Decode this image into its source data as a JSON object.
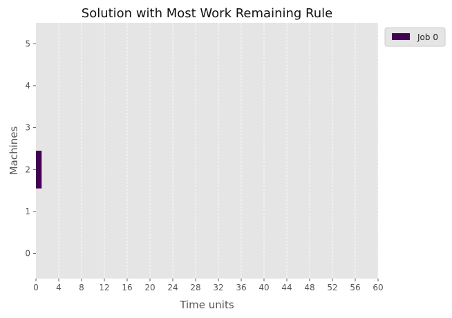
{
  "chart_data": {
    "type": "bar",
    "orientation": "horizontal",
    "title": "Solution with Most Work Remaining Rule",
    "xlabel": "Time units",
    "ylabel": "Machines",
    "xlim": [
      0,
      60
    ],
    "ylim": [
      -0.6,
      5.5
    ],
    "x_ticks": [
      0,
      4,
      8,
      12,
      16,
      20,
      24,
      28,
      32,
      36,
      40,
      44,
      48,
      52,
      56,
      60
    ],
    "y_ticks": [
      0,
      1,
      2,
      3,
      4,
      5
    ],
    "grid": "x-dashed",
    "background": "#e5e5e5",
    "legend_position": "outside-top-right",
    "series": [
      {
        "name": "Job 0",
        "color": "#440154",
        "bars": [
          {
            "machine": 2,
            "start": 0,
            "duration": 1
          }
        ]
      }
    ]
  }
}
